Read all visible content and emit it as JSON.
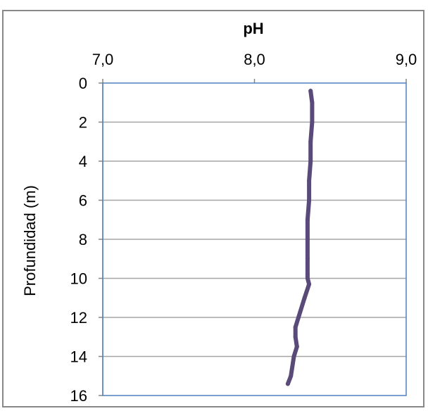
{
  "chart_data": {
    "type": "line",
    "title": "pH",
    "xlabel": "",
    "ylabel": "Profundidad (m)",
    "xlim": [
      7.0,
      9.0
    ],
    "ylim": [
      0,
      16
    ],
    "y_inverted": true,
    "x_axis_position": "top",
    "grid": "horizontal",
    "x_ticks": [
      "7,0",
      "8,0",
      "9,0"
    ],
    "x_tick_values": [
      7.0,
      8.0,
      9.0
    ],
    "y_ticks": [
      "0",
      "2",
      "4",
      "6",
      "8",
      "10",
      "12",
      "14",
      "16"
    ],
    "y_tick_values": [
      0,
      2,
      4,
      6,
      8,
      10,
      12,
      14,
      16
    ],
    "colors": {
      "line": "#5a4a7a",
      "plot_border": "#4f81bd",
      "grid": "#a6a6a6"
    },
    "series": [
      {
        "x": [
          8.37,
          8.38,
          8.38,
          8.37,
          8.37,
          8.36,
          8.36,
          8.35,
          8.35,
          8.35,
          8.35,
          8.35,
          8.36,
          8.33,
          8.29,
          8.27,
          8.27,
          8.28,
          8.26,
          8.24,
          8.22
        ],
        "y": [
          0.4,
          1.0,
          2.0,
          3.0,
          4.0,
          5.0,
          6.0,
          7.0,
          8.0,
          9.0,
          9.8,
          10.0,
          10.3,
          11.0,
          12.0,
          12.5,
          13.0,
          13.5,
          14.0,
          15.0,
          15.4
        ]
      }
    ]
  }
}
